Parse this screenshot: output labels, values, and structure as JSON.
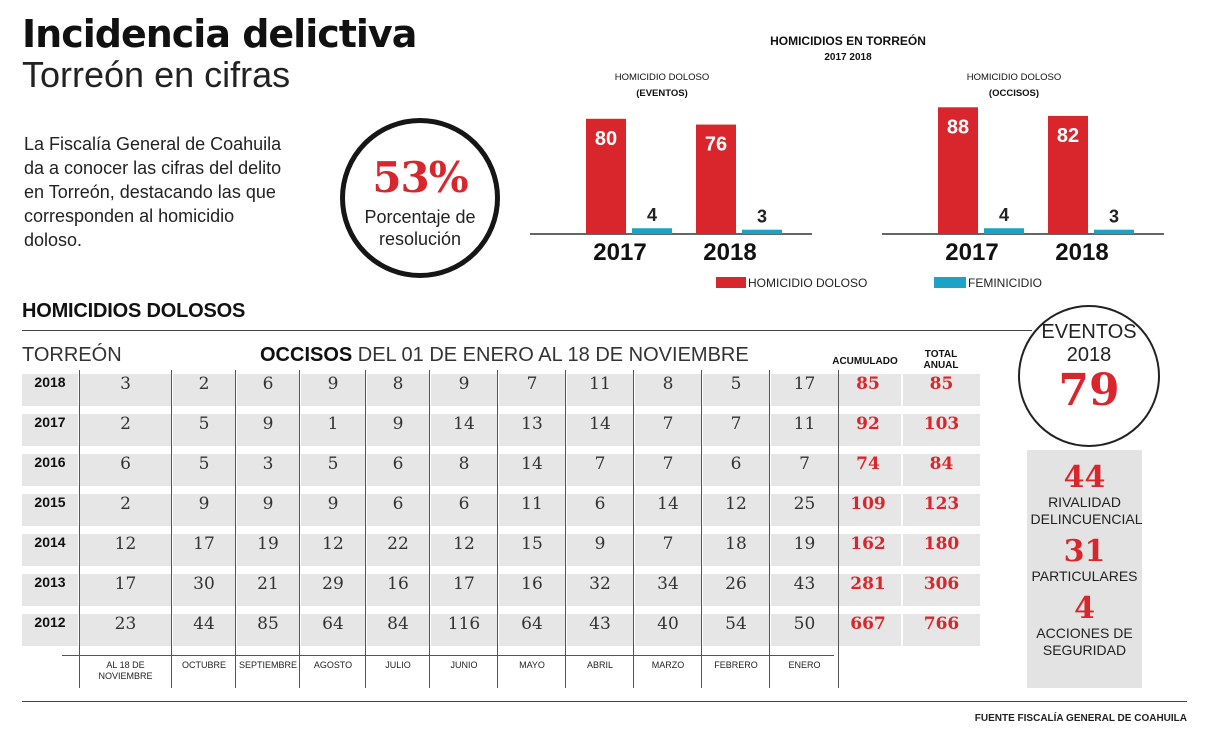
{
  "header": {
    "title": "Incidencia delictiva",
    "subtitle": "Torreón en cifras",
    "intro": "La Fiscalía General de Coahuila da a conocer las cifras del delito en Torreón, destacando las que corresponden al homicidio doloso."
  },
  "resolution": {
    "value": "53%",
    "label": "Porcentaje de resolución"
  },
  "chart_data": [
    {
      "type": "bar",
      "title": "HOMICIDIOS EN TORREÓN",
      "subtitle": "2017  2018",
      "panel_title": "HOMICIDIO DOLOSO",
      "panel_subtitle": "(EVENTOS)",
      "categories": [
        "2017",
        "2018"
      ],
      "series": [
        {
          "name": "HOMICIDIO DOLOSO",
          "color": "#d9262c",
          "values": [
            80,
            76
          ]
        },
        {
          "name": "FEMINICIDIO",
          "color": "#1ba3c6",
          "values": [
            4,
            3
          ]
        }
      ]
    },
    {
      "type": "bar",
      "panel_title": "HOMICIDIO DOLOSO",
      "panel_subtitle": "(OCCISOS)",
      "categories": [
        "2017",
        "2018"
      ],
      "series": [
        {
          "name": "HOMICIDIO DOLOSO",
          "color": "#d9262c",
          "values": [
            88,
            82
          ]
        },
        {
          "name": "FEMINICIDIO",
          "color": "#1ba3c6",
          "values": [
            4,
            3
          ]
        }
      ]
    },
    {
      "type": "table",
      "title": "HOMICIDIOS DOLOSOS",
      "row_header": "TORREÓN",
      "caption_bold": "OCCISOS",
      "caption_rest": " DEL 01 DE ENERO AL 18 DE NOVIEMBRE",
      "columns": [
        "AL 18 DE NOVIEMBRE",
        "OCTUBRE",
        "SEPTIEMBRE",
        "AGOSTO",
        "JULIO",
        "JUNIO",
        "MAYO",
        "ABRIL",
        "MARZO",
        "FEBRERO",
        "ENERO"
      ],
      "summary_columns": [
        "ACUMULADO",
        "TOTAL ANUAL"
      ],
      "rows": [
        {
          "year": "2018",
          "months": [
            3,
            2,
            6,
            9,
            8,
            9,
            7,
            11,
            8,
            5,
            17
          ],
          "acumulado": 85,
          "total": 85
        },
        {
          "year": "2017",
          "months": [
            2,
            5,
            9,
            1,
            9,
            14,
            13,
            14,
            7,
            7,
            11
          ],
          "acumulado": 92,
          "total": 103
        },
        {
          "year": "2016",
          "months": [
            6,
            5,
            3,
            5,
            6,
            8,
            14,
            7,
            7,
            6,
            7
          ],
          "acumulado": 74,
          "total": 84
        },
        {
          "year": "2015",
          "months": [
            2,
            9,
            9,
            9,
            6,
            6,
            11,
            6,
            14,
            12,
            25
          ],
          "acumulado": 109,
          "total": 123
        },
        {
          "year": "2014",
          "months": [
            12,
            17,
            19,
            12,
            22,
            12,
            15,
            9,
            7,
            18,
            19
          ],
          "acumulado": 162,
          "total": 180
        },
        {
          "year": "2013",
          "months": [
            17,
            30,
            21,
            29,
            16,
            17,
            16,
            32,
            34,
            26,
            43
          ],
          "acumulado": 281,
          "total": 306
        },
        {
          "year": "2012",
          "months": [
            23,
            44,
            85,
            64,
            84,
            116,
            64,
            43,
            40,
            54,
            50
          ],
          "acumulado": 667,
          "total": 766
        }
      ]
    }
  ],
  "eventos": {
    "label": "EVENTOS 2018",
    "value": "79"
  },
  "breakdown": [
    {
      "value": "44",
      "label": "RIVALIDAD DELINCUENCIAL"
    },
    {
      "value": "31",
      "label": "PARTICULARES"
    },
    {
      "value": "4",
      "label": "ACCIONES DE SEGURIDAD"
    }
  ],
  "source": "FUENTE FISCALÍA GENERAL DE COAHUILA"
}
